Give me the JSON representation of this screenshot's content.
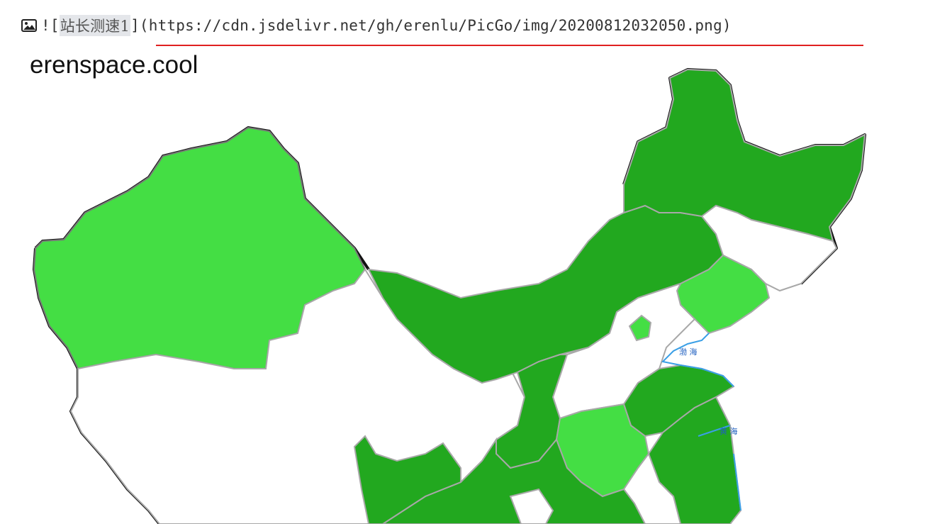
{
  "markdown": {
    "icon": "image-icon",
    "prefix": "![",
    "alt_text": "站长测速1",
    "middle": "](",
    "url": "https://cdn.jsdelivr.net/gh/erenlu/PicGo/img/20200812032050.png",
    "suffix": ")"
  },
  "preview": {
    "watermark": "erenspace.cool",
    "sea_labels": [
      "渤 海",
      "黄 海"
    ]
  },
  "colors": {
    "dark_green": "#22a81f",
    "light_green": "#44de44",
    "border_gray": "#a8a8a8",
    "coast_blue": "#3a9fe6",
    "underline_red": "#e02020"
  }
}
